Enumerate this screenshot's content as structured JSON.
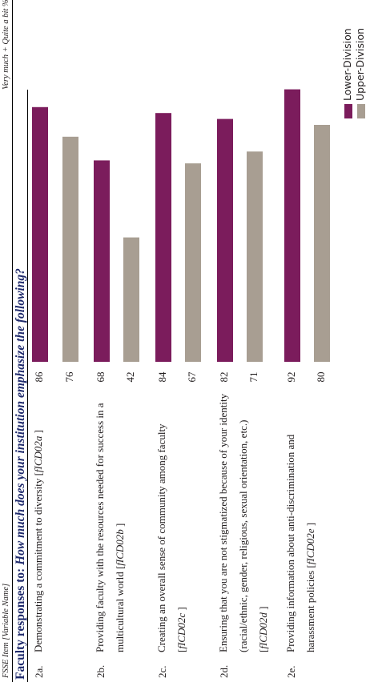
{
  "header": {
    "item_label": "FSSE Item [Variable Name]",
    "response_label": "Very much + Quite a bit %"
  },
  "question": {
    "lead": "Faculty responses to:",
    "text": "How much does your institution emphasize the following?"
  },
  "colors": {
    "lower": "#7b1c5c",
    "upper": "#a89e92"
  },
  "rows": [
    {
      "id": "2a.",
      "text": "Demonstrating a commitment to diversity [",
      "var": "fICD02a",
      "end": " ]",
      "lower": "86",
      "upper": "76"
    },
    {
      "id": "2b.",
      "text": "Providing faculty with the resources needed for success in a multicultural world [",
      "var": "fICD02b",
      "end": " ]",
      "lower": "68",
      "upper": "42"
    },
    {
      "id": "2c.",
      "text": "Creating an overall sense of community among faculty [",
      "var": "fICD02c",
      "end": " ]",
      "lower": "84",
      "upper": "67"
    },
    {
      "id": "2d.",
      "text": "Ensuring that you are not stigmatized because of your identity (racial/ethnic, gender, religious, sexual orientation, etc.) [",
      "var": "fICD02d",
      "end": " ]",
      "lower": "82",
      "upper": "71"
    },
    {
      "id": "2e.",
      "text": "Providing information about anti-discrimination and harassment policies [",
      "var": "fICD02e",
      "end": " ]",
      "lower": "92",
      "upper": "80"
    }
  ],
  "chart_data": {
    "type": "bar",
    "orientation": "horizontal",
    "categories": [
      "2a.",
      "2b.",
      "2c.",
      "2d.",
      "2e."
    ],
    "series": [
      {
        "name": "Lower-Division",
        "values": [
          86,
          68,
          84,
          82,
          92
        ]
      },
      {
        "name": "Upper-Division",
        "values": [
          76,
          42,
          67,
          71,
          80
        ]
      }
    ],
    "ylim": [
      0,
      100
    ],
    "grid": false,
    "legend": "bottom-left"
  },
  "legend": {
    "lower": "Lower-Division",
    "upper": "Upper-Division"
  }
}
